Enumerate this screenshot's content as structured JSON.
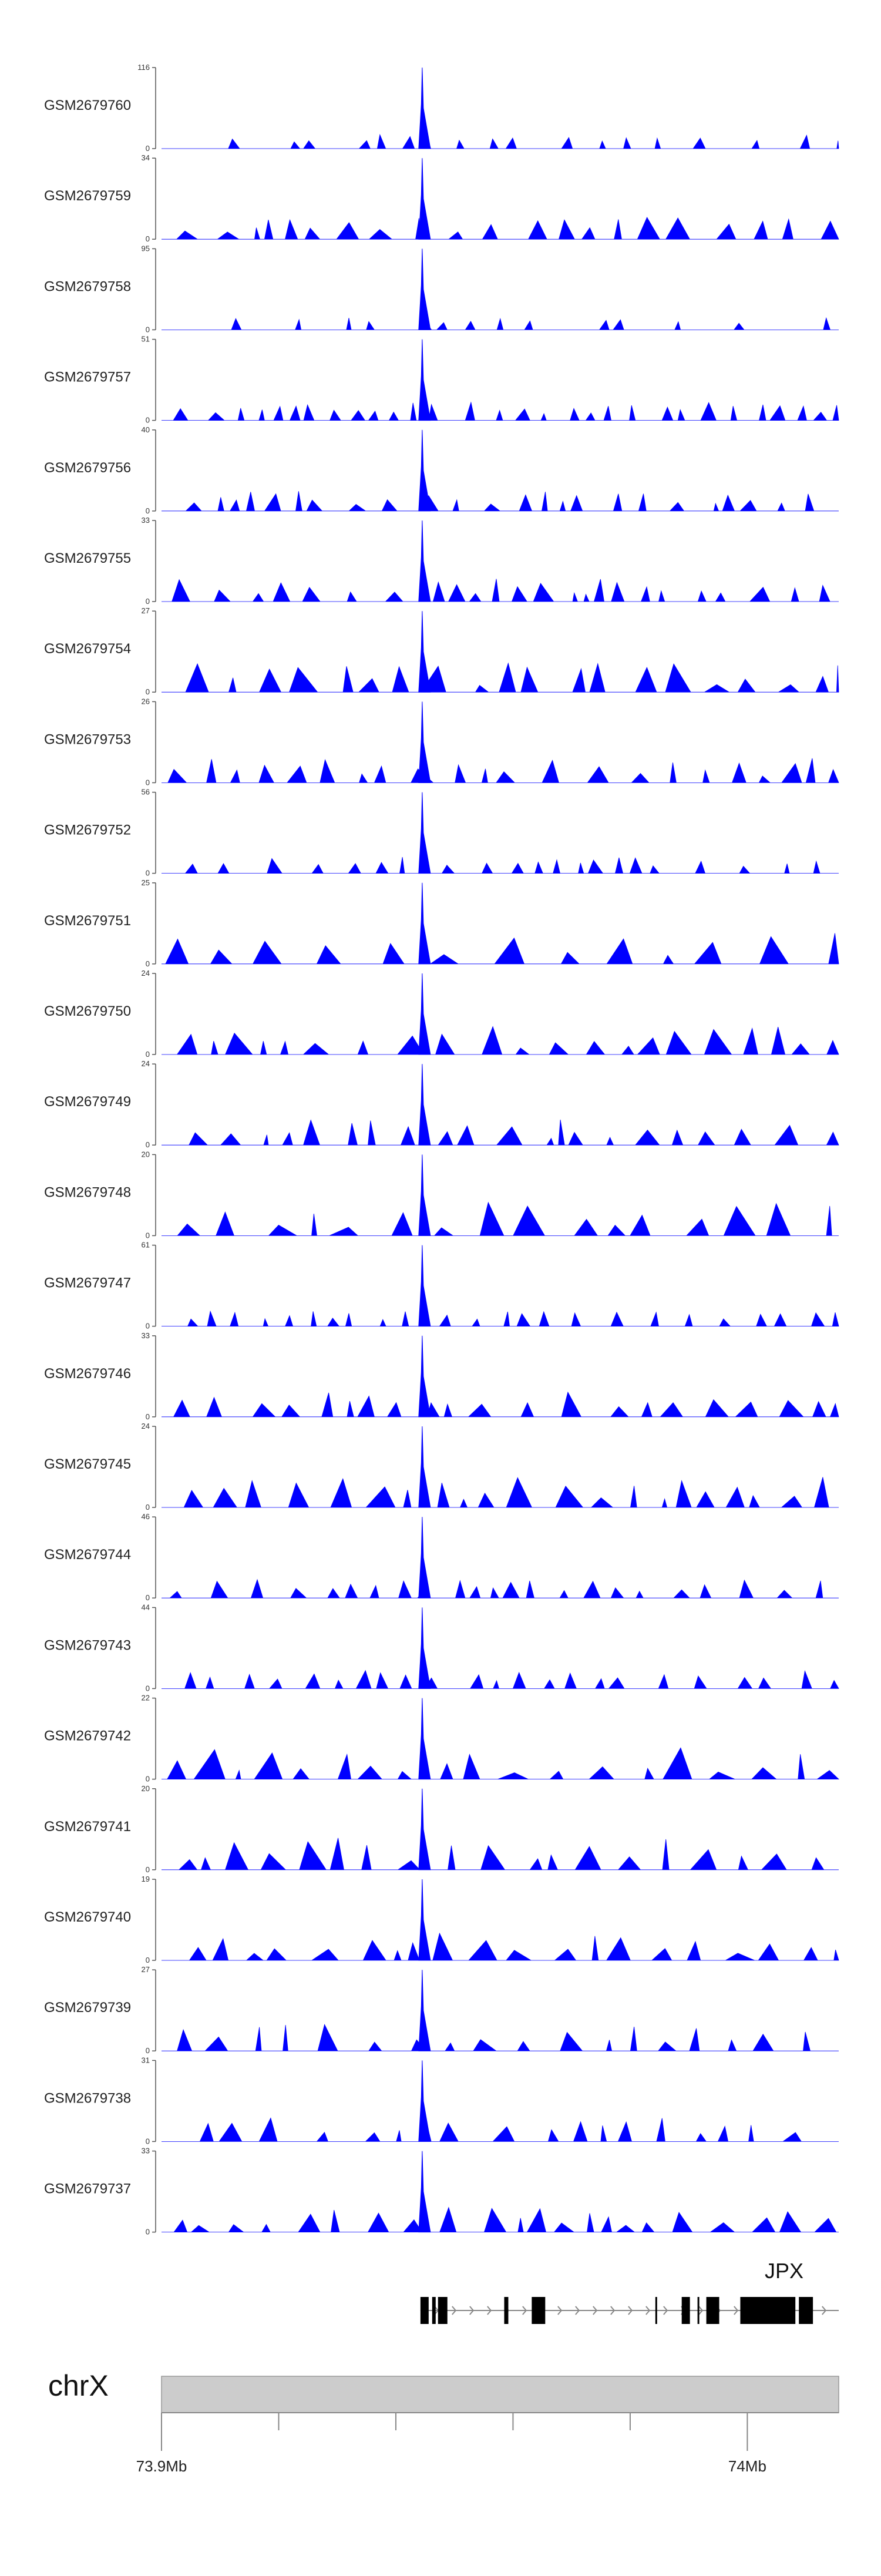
{
  "chart_data": {
    "type": "area",
    "description_title": "",
    "color": "#0000ff",
    "x_range_mb": [
      73.9,
      74.0156
    ],
    "chromosome": "chrX",
    "coordinate_ticks": [
      {
        "pos_mb": 73.9,
        "label": "73.9Mb"
      },
      {
        "pos_mb": 74.0,
        "label": "74Mb"
      }
    ],
    "minor_ticks_mb": [
      73.92,
      73.94,
      73.96,
      73.98
    ],
    "gene": {
      "name": "JPX",
      "strand": "+",
      "start_mb": 73.9442,
      "end_mb": 74.0156,
      "exons_mb": [
        [
          73.9442,
          73.9456
        ],
        [
          73.9462,
          73.9468
        ],
        [
          73.9472,
          73.9488
        ],
        [
          73.9585,
          73.9592
        ],
        [
          73.9632,
          73.9655
        ],
        [
          73.9843,
          73.9846
        ],
        [
          73.9888,
          73.9902
        ],
        [
          73.9915,
          73.9918
        ],
        [
          73.993,
          73.9952
        ],
        [
          73.9988,
          74.0082
        ],
        [
          74.0088,
          74.0112
        ]
      ]
    },
    "peak_position_mb": 73.9445,
    "series": [
      {
        "name": "GSM2679760",
        "ymax": 116,
        "seed": 11,
        "density": 0.35,
        "spread": 0.22
      },
      {
        "name": "GSM2679759",
        "ymax": 34,
        "seed": 12,
        "density": 0.8,
        "spread": 0.55
      },
      {
        "name": "GSM2679758",
        "ymax": 95,
        "seed": 13,
        "density": 0.3,
        "spread": 0.18
      },
      {
        "name": "GSM2679757",
        "ymax": 51,
        "seed": 14,
        "density": 0.85,
        "spread": 0.35
      },
      {
        "name": "GSM2679756",
        "ymax": 40,
        "seed": 15,
        "density": 0.85,
        "spread": 0.4
      },
      {
        "name": "GSM2679755",
        "ymax": 33,
        "seed": 16,
        "density": 0.7,
        "spread": 0.5
      },
      {
        "name": "GSM2679754",
        "ymax": 27,
        "seed": 17,
        "density": 0.75,
        "spread": 0.7
      },
      {
        "name": "GSM2679753",
        "ymax": 26,
        "seed": 18,
        "density": 0.9,
        "spread": 0.55
      },
      {
        "name": "GSM2679752",
        "ymax": 56,
        "seed": 19,
        "density": 0.65,
        "spread": 0.3
      },
      {
        "name": "GSM2679751",
        "ymax": 25,
        "seed": 20,
        "density": 0.6,
        "spread": 0.75
      },
      {
        "name": "GSM2679750",
        "ymax": 24,
        "seed": 21,
        "density": 0.9,
        "spread": 0.65
      },
      {
        "name": "GSM2679749",
        "ymax": 24,
        "seed": 22,
        "density": 0.9,
        "spread": 0.6
      },
      {
        "name": "GSM2679748",
        "ymax": 20,
        "seed": 23,
        "density": 0.7,
        "spread": 0.8
      },
      {
        "name": "GSM2679747",
        "ymax": 61,
        "seed": 24,
        "density": 0.85,
        "spread": 0.25
      },
      {
        "name": "GSM2679746",
        "ymax": 33,
        "seed": 25,
        "density": 0.75,
        "spread": 0.55
      },
      {
        "name": "GSM2679745",
        "ymax": 24,
        "seed": 26,
        "density": 0.9,
        "spread": 0.7
      },
      {
        "name": "GSM2679744",
        "ymax": 46,
        "seed": 27,
        "density": 0.85,
        "spread": 0.35
      },
      {
        "name": "GSM2679743",
        "ymax": 44,
        "seed": 28,
        "density": 0.75,
        "spread": 0.35
      },
      {
        "name": "GSM2679742",
        "ymax": 22,
        "seed": 29,
        "density": 0.85,
        "spread": 0.75
      },
      {
        "name": "GSM2679741",
        "ymax": 20,
        "seed": 30,
        "density": 0.9,
        "spread": 0.75
      },
      {
        "name": "GSM2679740",
        "ymax": 19,
        "seed": 31,
        "density": 0.95,
        "spread": 0.7
      },
      {
        "name": "GSM2679739",
        "ymax": 27,
        "seed": 32,
        "density": 0.85,
        "spread": 0.6
      },
      {
        "name": "GSM2679738",
        "ymax": 31,
        "seed": 33,
        "density": 0.6,
        "spread": 0.55
      },
      {
        "name": "GSM2679737",
        "ymax": 33,
        "seed": 34,
        "density": 0.9,
        "spread": 0.55
      }
    ]
  }
}
